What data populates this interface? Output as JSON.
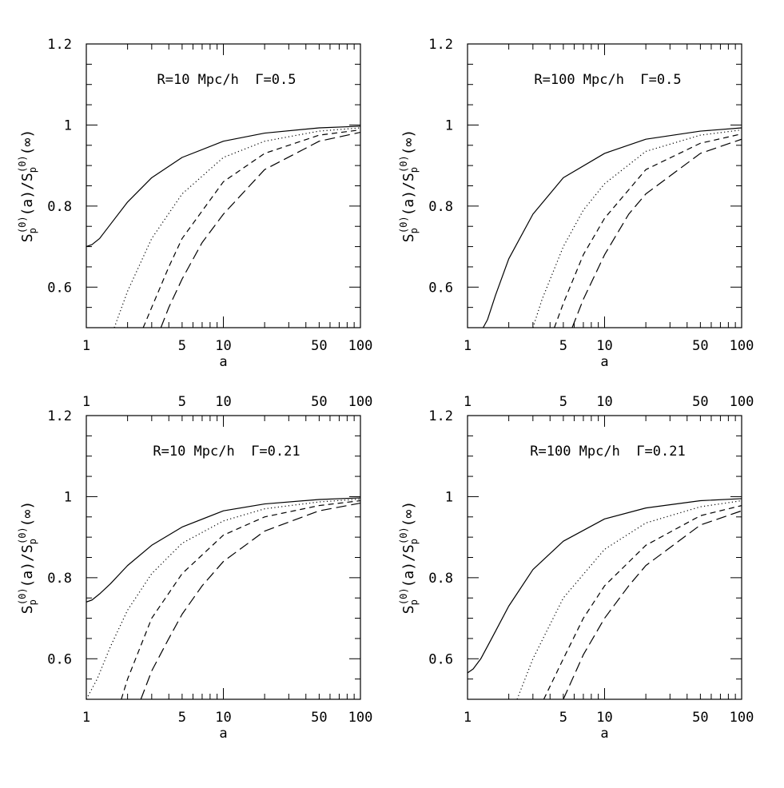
{
  "figure": {
    "panels": 4,
    "layout": "2x2 grid"
  },
  "chart_data": [
    {
      "type": "line",
      "annotation": "R=10 Mpc/h  Γ=0.5",
      "xlabel": "a",
      "ylabel": {
        "prefix": "S",
        "sub": "p",
        "sup": "(0)",
        "mid": "(a)/S",
        "suffix": "(∞)"
      },
      "xscale": "log",
      "xlim": [
        1,
        100
      ],
      "ylim": [
        0.5,
        1.2
      ],
      "xticks_labeled": [
        "1",
        "5",
        "10",
        "50",
        "100"
      ],
      "yticks_labeled": [
        "0.6",
        "0.8",
        "1",
        "1.2"
      ],
      "top_axis_labels": [],
      "series": [
        {
          "style": "solid",
          "x": [
            1,
            1.1,
            1.25,
            1.5,
            2,
            3,
            5,
            10,
            20,
            50,
            100
          ],
          "y": [
            0.7,
            0.705,
            0.72,
            0.755,
            0.81,
            0.87,
            0.92,
            0.96,
            0.98,
            0.993,
            0.997
          ]
        },
        {
          "style": "dotted",
          "x": [
            1.6,
            2,
            3,
            5,
            10,
            20,
            50,
            100
          ],
          "y": [
            0.5,
            0.59,
            0.72,
            0.83,
            0.92,
            0.96,
            0.985,
            0.993
          ]
        },
        {
          "style": "short-dashed",
          "x": [
            2.6,
            3,
            4,
            5,
            10,
            20,
            50,
            100
          ],
          "y": [
            0.5,
            0.55,
            0.65,
            0.72,
            0.86,
            0.93,
            0.975,
            0.988
          ]
        },
        {
          "style": "long-dashed",
          "x": [
            3.5,
            4,
            5,
            7,
            10,
            20,
            50,
            100
          ],
          "y": [
            0.5,
            0.55,
            0.62,
            0.71,
            0.78,
            0.89,
            0.96,
            0.982
          ]
        }
      ]
    },
    {
      "type": "line",
      "annotation": "R=100 Mpc/h  Γ=0.5",
      "xlabel": "a",
      "ylabel": {
        "prefix": "S",
        "sub": "p",
        "sup": "(0)",
        "mid": "(a)/S",
        "suffix": "(∞)"
      },
      "xscale": "log",
      "xlim": [
        1,
        100
      ],
      "ylim": [
        0.5,
        1.2
      ],
      "xticks_labeled": [
        "1",
        "5",
        "10",
        "50",
        "100"
      ],
      "yticks_labeled": [
        "0.6",
        "0.8",
        "1",
        "1.2"
      ],
      "top_axis_labels": [],
      "series": [
        {
          "style": "solid",
          "x": [
            1.3,
            1.4,
            1.6,
            2,
            3,
            5,
            10,
            20,
            50,
            100
          ],
          "y": [
            0.5,
            0.52,
            0.58,
            0.67,
            0.78,
            0.87,
            0.93,
            0.965,
            0.985,
            0.993
          ]
        },
        {
          "style": "dotted",
          "x": [
            3.0,
            3.5,
            5,
            7,
            10,
            20,
            50,
            100
          ],
          "y": [
            0.5,
            0.57,
            0.7,
            0.79,
            0.855,
            0.935,
            0.975,
            0.988
          ]
        },
        {
          "style": "short-dashed",
          "x": [
            4.3,
            5,
            7,
            10,
            20,
            50,
            100
          ],
          "y": [
            0.5,
            0.56,
            0.68,
            0.77,
            0.89,
            0.955,
            0.978
          ]
        },
        {
          "style": "long-dashed",
          "x": [
            5.8,
            7,
            10,
            15,
            20,
            50,
            100
          ],
          "y": [
            0.5,
            0.57,
            0.68,
            0.78,
            0.83,
            0.93,
            0.965
          ]
        }
      ]
    },
    {
      "type": "line",
      "annotation": "R=10 Mpc/h  Γ=0.21",
      "xlabel": "a",
      "ylabel": {
        "prefix": "S",
        "sub": "p",
        "sup": "(0)",
        "mid": "(a)/S",
        "suffix": "(∞)"
      },
      "xscale": "log",
      "xlim": [
        1,
        100
      ],
      "ylim": [
        0.5,
        1.2
      ],
      "xticks_labeled": [
        "1",
        "5",
        "10",
        "50",
        "100"
      ],
      "yticks_labeled": [
        "0.6",
        "0.8",
        "1",
        "1.2"
      ],
      "top_axis_labels": [
        "1",
        "5",
        "10",
        "50",
        "100"
      ],
      "series": [
        {
          "style": "solid",
          "x": [
            1,
            1.1,
            1.25,
            1.5,
            2,
            3,
            5,
            10,
            20,
            50,
            100
          ],
          "y": [
            0.74,
            0.745,
            0.76,
            0.785,
            0.83,
            0.88,
            0.925,
            0.965,
            0.982,
            0.993,
            0.997
          ]
        },
        {
          "style": "dotted",
          "x": [
            1,
            1.2,
            1.5,
            2,
            3,
            5,
            10,
            20,
            50,
            100
          ],
          "y": [
            0.5,
            0.55,
            0.63,
            0.72,
            0.81,
            0.885,
            0.94,
            0.97,
            0.987,
            0.994
          ]
        },
        {
          "style": "short-dashed",
          "x": [
            1.8,
            2,
            3,
            5,
            10,
            20,
            50,
            100
          ],
          "y": [
            0.5,
            0.55,
            0.7,
            0.81,
            0.905,
            0.95,
            0.978,
            0.99
          ]
        },
        {
          "style": "long-dashed",
          "x": [
            2.5,
            3,
            4,
            5,
            7,
            10,
            20,
            50,
            100
          ],
          "y": [
            0.5,
            0.57,
            0.65,
            0.71,
            0.78,
            0.84,
            0.915,
            0.965,
            0.984
          ]
        }
      ]
    },
    {
      "type": "line",
      "annotation": "R=100 Mpc/h  Γ=0.21",
      "xlabel": "a",
      "ylabel": {
        "prefix": "S",
        "sub": "p",
        "sup": "(0)",
        "mid": "(a)/S",
        "suffix": "(∞)"
      },
      "xscale": "log",
      "xlim": [
        1,
        100
      ],
      "ylim": [
        0.5,
        1.2
      ],
      "xticks_labeled": [
        "1",
        "5",
        "10",
        "50",
        "100"
      ],
      "yticks_labeled": [
        "0.6",
        "0.8",
        "1",
        "1.2"
      ],
      "top_axis_labels": [
        "1",
        "5",
        "10",
        "50",
        "100"
      ],
      "series": [
        {
          "style": "solid",
          "x": [
            1,
            1.1,
            1.25,
            1.5,
            2,
            3,
            5,
            10,
            20,
            50,
            100
          ],
          "y": [
            0.565,
            0.575,
            0.6,
            0.65,
            0.73,
            0.82,
            0.89,
            0.945,
            0.972,
            0.99,
            0.995
          ]
        },
        {
          "style": "dotted",
          "x": [
            2.3,
            3,
            5,
            10,
            20,
            50,
            100
          ],
          "y": [
            0.5,
            0.6,
            0.75,
            0.87,
            0.935,
            0.975,
            0.99
          ]
        },
        {
          "style": "short-dashed",
          "x": [
            3.6,
            5,
            7,
            10,
            20,
            50,
            100
          ],
          "y": [
            0.5,
            0.6,
            0.7,
            0.78,
            0.88,
            0.953,
            0.978
          ]
        },
        {
          "style": "long-dashed",
          "x": [
            5.0,
            7,
            10,
            15,
            20,
            50,
            100
          ],
          "y": [
            0.5,
            0.61,
            0.7,
            0.78,
            0.83,
            0.93,
            0.965
          ]
        }
      ]
    }
  ]
}
